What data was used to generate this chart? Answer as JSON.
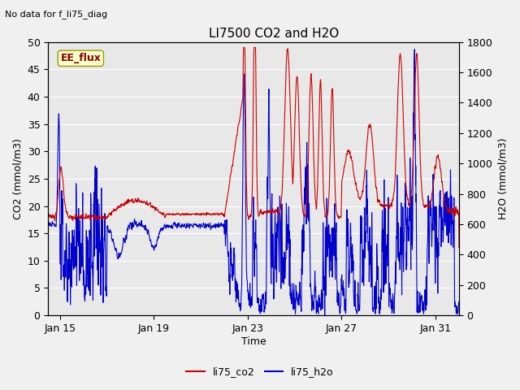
{
  "title": "LI7500 CO2 and H2O",
  "top_left_text": "No data for f_li75_diag",
  "xlabel": "Time",
  "ylabel_left": "CO2 (mmol/m3)",
  "ylabel_right": "H2O (mmol/m3)",
  "ylim_left": [
    0,
    50
  ],
  "ylim_right": [
    0,
    1800
  ],
  "yticks_left": [
    0,
    5,
    10,
    15,
    20,
    25,
    30,
    35,
    40,
    45,
    50
  ],
  "yticks_right": [
    0,
    200,
    400,
    600,
    800,
    1000,
    1200,
    1400,
    1600,
    1800
  ],
  "color_co2": "#cc0000",
  "color_h2o": "#0000cc",
  "background_color": "#f0f0f0",
  "plot_bg_color": "#e8e8e8",
  "gridline_color": "#ffffff",
  "ee_flux_box_facecolor": "#ffffcc",
  "ee_flux_text_color": "#880000",
  "ee_flux_label": "EE_flux",
  "legend_label_co2": "li75_co2",
  "legend_label_h2o": "li75_h2o",
  "xtick_labels": [
    "Jan 15",
    "Jan 19",
    "Jan 23",
    "Jan 27",
    "Jan 31"
  ],
  "xtick_days": [
    15,
    19,
    23,
    27,
    31
  ],
  "xstart_day": 14.5,
  "xend_day": 32.0
}
